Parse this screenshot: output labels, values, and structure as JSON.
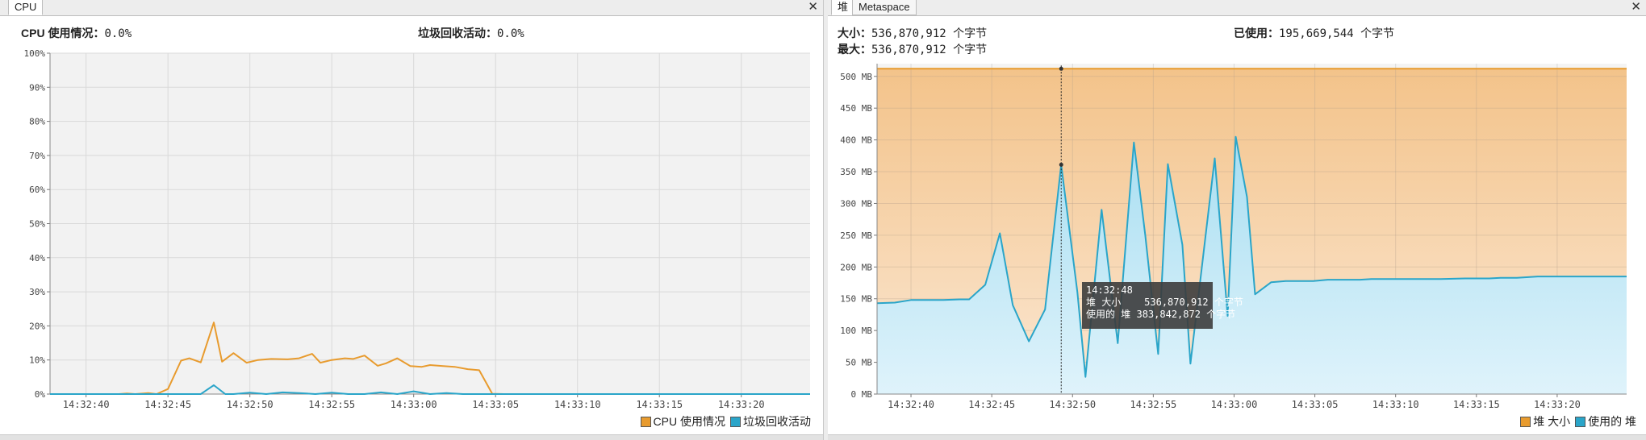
{
  "cpu_panel": {
    "tab_title": "CPU",
    "cpu_usage_label": "CPU 使用情况：",
    "cpu_usage_value": "0.0%",
    "gc_activity_label": "垃圾回收活动：",
    "gc_activity_value": "0.0%",
    "legend": {
      "cpu": "CPU 使用情况",
      "gc": "垃圾回收活动"
    },
    "colors": {
      "cpu": "#e89b2e",
      "gc": "#2aa5c9"
    }
  },
  "heap_panel": {
    "tabs": [
      "堆",
      "Metaspace"
    ],
    "size_label": "大小：",
    "size_value": "536,870,912 个字节",
    "used_label": "已使用：",
    "used_value": "195,669,544 个字节",
    "max_label": "最大：",
    "max_value": "536,870,912 个字节",
    "legend": {
      "size": "堆 大小",
      "used": "使用的 堆"
    },
    "colors": {
      "size": "#e89b2e",
      "used": "#2aa5c9"
    },
    "tooltip": {
      "time": "14:32:48",
      "size_label": "堆 大小",
      "size_value": "536,870,912 个字节",
      "used_label": "使用的 堆",
      "used_value": "383,842,872 个字节"
    }
  },
  "chart_data": [
    {
      "type": "line",
      "ylim": [
        0,
        100
      ],
      "yticks": [
        "0%",
        "10%",
        "20%",
        "30%",
        "40%",
        "50%",
        "60%",
        "70%",
        "80%",
        "90%",
        "100%"
      ],
      "x_ticks": [
        "14:32:40",
        "14:32:45",
        "14:32:50",
        "14:32:55",
        "14:33:00",
        "14:33:05",
        "14:33:10",
        "14:33:15",
        "14:33:20"
      ],
      "x_tick_seconds": [
        40,
        45,
        50,
        55,
        60,
        65,
        70,
        75,
        80
      ],
      "x_range_seconds": [
        37.8,
        84.2
      ],
      "grid": true,
      "legend_position": "bottom-right",
      "series": [
        {
          "name": "CPU 使用情况",
          "x": [
            37.8,
            39.3,
            40.3,
            41,
            42,
            42.5,
            43,
            43.8,
            44.3,
            45,
            45.8,
            46.3,
            47,
            47.8,
            48.3,
            49,
            49.8,
            50.5,
            51.3,
            52.3,
            53,
            53.8,
            54.3,
            55,
            55.8,
            56.3,
            57,
            57.8,
            58.3,
            59,
            59.8,
            60.5,
            61,
            61.8,
            62.5,
            63.3,
            64,
            64.8,
            65.5,
            66.3,
            67,
            67.8,
            68.3,
            69,
            69.3,
            70,
            84.2
          ],
          "y": [
            0,
            0,
            0,
            0,
            0,
            0.2,
            0,
            0.3,
            0,
            1.5,
            9.8,
            10.5,
            9.3,
            21,
            9.5,
            12,
            9.2,
            10,
            10.3,
            10.2,
            10.5,
            11.8,
            9.2,
            10,
            10.5,
            10.3,
            11.3,
            8.3,
            9,
            10.5,
            8.2,
            8,
            8.5,
            8.2,
            8,
            7.3,
            7,
            0.1,
            0,
            0,
            0,
            0,
            0,
            0,
            0,
            0,
            0
          ]
        },
        {
          "name": "垃圾回收活动",
          "x": [
            37.8,
            47,
            47.8,
            48.5,
            49,
            50,
            51,
            52,
            53,
            54,
            55,
            56,
            57,
            58,
            59,
            60,
            61,
            62,
            63,
            84.2
          ],
          "y": [
            0,
            0,
            2.6,
            0,
            0,
            0.4,
            0,
            0.5,
            0.3,
            0,
            0.4,
            0,
            0,
            0.5,
            0,
            0.8,
            0,
            0.3,
            0,
            0
          ]
        }
      ]
    },
    {
      "type": "area",
      "ylim": [
        0,
        520
      ],
      "yticks": [
        "0 MB",
        "50 MB",
        "100 MB",
        "150 MB",
        "200 MB",
        "250 MB",
        "300 MB",
        "350 MB",
        "400 MB",
        "450 MB",
        "500 MB"
      ],
      "x_ticks": [
        "14:32:40",
        "14:32:45",
        "14:32:50",
        "14:32:55",
        "14:33:00",
        "14:33:05",
        "14:33:10",
        "14:33:15",
        "14:33:20"
      ],
      "x_tick_seconds": [
        40,
        45,
        50,
        55,
        60,
        65,
        70,
        75,
        80
      ],
      "x_range_seconds": [
        37.9,
        84.3
      ],
      "grid": true,
      "legend_position": "bottom-right",
      "series": [
        {
          "name": "堆 大小",
          "x": [
            37.9,
            84.3
          ],
          "y": [
            512,
            512
          ]
        },
        {
          "name": "使用的 堆",
          "x": [
            37.9,
            39,
            40,
            41,
            42,
            43,
            43.6,
            44.6,
            45.5,
            46.3,
            47.3,
            48.3,
            49.3,
            50.3,
            50.8,
            51.8,
            52.8,
            53.8,
            54.5,
            55.3,
            55.9,
            56.8,
            57.3,
            58.8,
            59.6,
            60.1,
            60.8,
            61.3,
            62.3,
            63.2,
            64.3,
            64.9,
            65.8,
            66.5,
            67.8,
            68.5,
            69.8,
            70.5,
            71.8,
            72.8,
            74.3,
            75.8,
            76.5,
            77.5,
            78.8,
            79.8,
            80.8,
            82.3,
            84.3
          ],
          "y": [
            143,
            144,
            148,
            148,
            148,
            149,
            149,
            172,
            253,
            140,
            83,
            133,
            361,
            160,
            27,
            290,
            80,
            396,
            250,
            63,
            362,
            235,
            48,
            371,
            123,
            405,
            310,
            157,
            176,
            178,
            178,
            178,
            180,
            180,
            180,
            181,
            181,
            181,
            181,
            181,
            182,
            182,
            183,
            183,
            185,
            185,
            185,
            185,
            185
          ]
        }
      ]
    }
  ]
}
